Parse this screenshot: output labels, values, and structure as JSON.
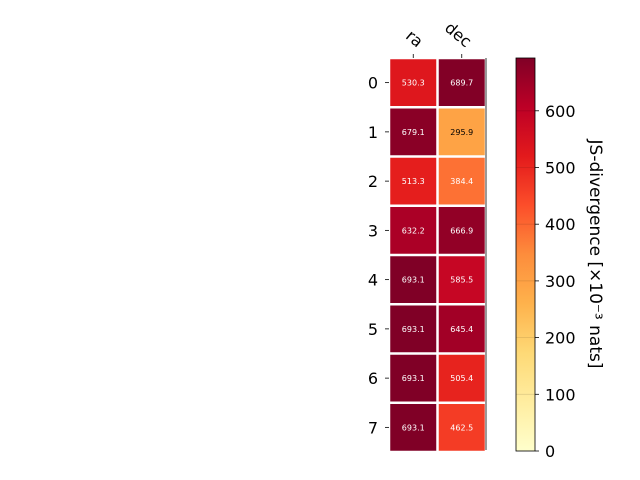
{
  "chart_data": {
    "type": "heatmap",
    "columns": [
      "ra",
      "dec"
    ],
    "rows": [
      "0",
      "1",
      "2",
      "3",
      "4",
      "5",
      "6",
      "7"
    ],
    "values": [
      [
        530.3,
        689.7
      ],
      [
        679.1,
        295.9
      ],
      [
        513.3,
        384.4
      ],
      [
        632.2,
        666.9
      ],
      [
        693.1,
        585.5
      ],
      [
        693.1,
        645.4
      ],
      [
        693.1,
        505.4
      ],
      [
        693.1,
        462.5
      ]
    ],
    "colorbar": {
      "label": "JS-divergence [×10⁻³ nats]",
      "ticks": [
        "0",
        "100",
        "200",
        "300",
        "400",
        "500",
        "600"
      ],
      "range": [
        0,
        693.1
      ],
      "colormap": [
        "#ffffcc",
        "#ffeda0",
        "#fed976",
        "#feb24c",
        "#fd8d3c",
        "#fc4e2a",
        "#e31a1c",
        "#bd0026",
        "#800026"
      ]
    }
  }
}
